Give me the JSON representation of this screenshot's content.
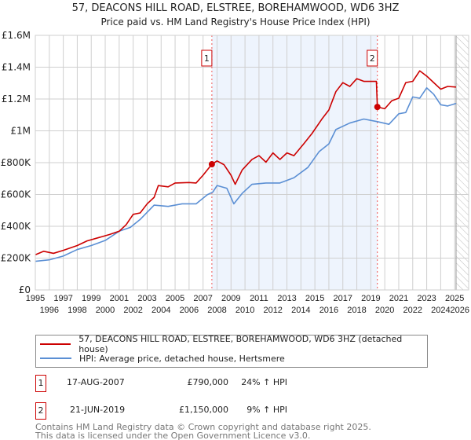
{
  "header": {
    "title": "57, DEACONS HILL ROAD, ELSTREE, BOREHAMWOOD, WD6 3HZ",
    "subtitle": "Price paid vs. HM Land Registry's House Price Index (HPI)"
  },
  "chart_data": {
    "type": "line",
    "title": "57, DEACONS HILL ROAD, ELSTREE, BOREHAMWOOD, WD6 3HZ",
    "subtitle": "Price paid vs. HM Land Registry's House Price Index (HPI)",
    "xlim": [
      1995,
      2026
    ],
    "ylim": [
      0,
      1600000
    ],
    "x_ticks": [
      "1995",
      "1996",
      "1997",
      "1998",
      "1999",
      "2000",
      "2001",
      "2002",
      "2003",
      "2004",
      "2005",
      "2006",
      "2007",
      "2008",
      "2009",
      "2010",
      "2011",
      "2012",
      "2013",
      "2014",
      "2015",
      "2016",
      "2017",
      "2018",
      "2019",
      "2020",
      "2021",
      "2022",
      "2023",
      "2024",
      "2025",
      "2026"
    ],
    "y_ticks": [
      {
        "v": 0,
        "label": "£0"
      },
      {
        "v": 200000,
        "label": "£200K"
      },
      {
        "v": 400000,
        "label": "£400K"
      },
      {
        "v": 600000,
        "label": "£600K"
      },
      {
        "v": 800000,
        "label": "£800K"
      },
      {
        "v": 1000000,
        "label": "£1M"
      },
      {
        "v": 1200000,
        "label": "£1.2M"
      },
      {
        "v": 1400000,
        "label": "£1.4M"
      },
      {
        "v": 1600000,
        "label": "£1.6M"
      }
    ],
    "grid": true,
    "shaded_range": [
      2007.63,
      2019.47
    ],
    "forecast_hatch_from": 2025.1,
    "series": [
      {
        "name": "57, DEACONS HILL ROAD, ELSTREE, BOREHAMWOOD, WD6 3HZ (detached house)",
        "color": "#cc0000",
        "points": [
          [
            1995,
            221000
          ],
          [
            1995.6,
            243000
          ],
          [
            1996.3,
            230000
          ],
          [
            1997,
            249000
          ],
          [
            1998,
            279000
          ],
          [
            1998.7,
            308000
          ],
          [
            1999.5,
            328000
          ],
          [
            2000.3,
            348000
          ],
          [
            2001,
            369000
          ],
          [
            2001.5,
            410000
          ],
          [
            2002,
            475000
          ],
          [
            2002.5,
            484000
          ],
          [
            2003,
            541000
          ],
          [
            2003.5,
            582000
          ],
          [
            2003.8,
            656000
          ],
          [
            2004.5,
            648000
          ],
          [
            2005,
            672000
          ],
          [
            2006,
            675000
          ],
          [
            2006.5,
            672000
          ],
          [
            2007,
            721000
          ],
          [
            2007.63,
            790000
          ],
          [
            2008,
            811000
          ],
          [
            2008.5,
            787000
          ],
          [
            2009,
            721000
          ],
          [
            2009.3,
            664000
          ],
          [
            2009.8,
            754000
          ],
          [
            2010.5,
            820000
          ],
          [
            2011,
            844000
          ],
          [
            2011.5,
            803000
          ],
          [
            2012,
            861000
          ],
          [
            2012.5,
            820000
          ],
          [
            2013,
            861000
          ],
          [
            2013.5,
            844000
          ],
          [
            2014.2,
            918000
          ],
          [
            2014.8,
            984000
          ],
          [
            2015.5,
            1074000
          ],
          [
            2016,
            1131000
          ],
          [
            2016.5,
            1246000
          ],
          [
            2017,
            1303000
          ],
          [
            2017.5,
            1279000
          ],
          [
            2018,
            1328000
          ],
          [
            2018.5,
            1311000
          ],
          [
            2019.4,
            1311000
          ],
          [
            2019.47,
            1150000
          ],
          [
            2020,
            1139000
          ],
          [
            2020.5,
            1189000
          ],
          [
            2021,
            1205000
          ],
          [
            2021.5,
            1303000
          ],
          [
            2022,
            1311000
          ],
          [
            2022.5,
            1377000
          ],
          [
            2023,
            1344000
          ],
          [
            2023.5,
            1303000
          ],
          [
            2024,
            1262000
          ],
          [
            2024.5,
            1279000
          ],
          [
            2025.1,
            1275000
          ]
        ]
      },
      {
        "name": "HPI: Average price, detached house, Hertsmere",
        "color": "#5b8fd4",
        "points": [
          [
            1995,
            180000
          ],
          [
            1996,
            189000
          ],
          [
            1997,
            213000
          ],
          [
            1998,
            254000
          ],
          [
            1999,
            279000
          ],
          [
            2000,
            311000
          ],
          [
            2001,
            369000
          ],
          [
            2001.8,
            393000
          ],
          [
            2002.5,
            443000
          ],
          [
            2003.5,
            533000
          ],
          [
            2004.5,
            525000
          ],
          [
            2005.5,
            541000
          ],
          [
            2006.5,
            541000
          ],
          [
            2007.3,
            598000
          ],
          [
            2007.7,
            615000
          ],
          [
            2008,
            656000
          ],
          [
            2008.7,
            639000
          ],
          [
            2009.2,
            541000
          ],
          [
            2009.8,
            607000
          ],
          [
            2010.5,
            664000
          ],
          [
            2011.5,
            672000
          ],
          [
            2012.5,
            672000
          ],
          [
            2013.5,
            705000
          ],
          [
            2014.5,
            770000
          ],
          [
            2015.3,
            869000
          ],
          [
            2016,
            918000
          ],
          [
            2016.5,
            1008000
          ],
          [
            2017.5,
            1049000
          ],
          [
            2018.5,
            1074000
          ],
          [
            2019.5,
            1057000
          ],
          [
            2020.3,
            1041000
          ],
          [
            2021,
            1107000
          ],
          [
            2021.5,
            1115000
          ],
          [
            2022,
            1213000
          ],
          [
            2022.5,
            1205000
          ],
          [
            2023,
            1270000
          ],
          [
            2023.5,
            1230000
          ],
          [
            2024,
            1164000
          ],
          [
            2024.5,
            1156000
          ],
          [
            2025.1,
            1172000
          ]
        ]
      }
    ],
    "sales": [
      {
        "label": "1",
        "x": 2007.63,
        "y": 790000
      },
      {
        "label": "2",
        "x": 2019.47,
        "y": 1150000
      }
    ]
  },
  "legend": {
    "red": "57, DEACONS HILL ROAD, ELSTREE, BOREHAMWOOD, WD6 3HZ (detached house)",
    "blue": "HPI: Average price, detached house, Hertsmere"
  },
  "transactions": [
    {
      "num": "1",
      "date": "17-AUG-2007",
      "price": "£790,000",
      "hpi": "24% ↑ HPI"
    },
    {
      "num": "2",
      "date": "21-JUN-2019",
      "price": "£1,150,000",
      "hpi": "9% ↑ HPI"
    }
  ],
  "footer": {
    "line1": "Contains HM Land Registry data © Crown copyright and database right 2025.",
    "line2": "This data is licensed under the Open Government Licence v3.0."
  }
}
